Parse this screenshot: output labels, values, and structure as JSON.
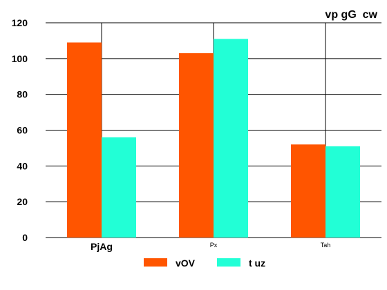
{
  "chart_data": {
    "type": "bar",
    "title": "vp gG  cw",
    "xlabel": "",
    "ylabel": "",
    "categories": [
      "PjAg",
      "Px",
      "Tah"
    ],
    "series": [
      {
        "name": "vOV",
        "values": [
          109,
          103,
          52
        ],
        "color": "#ff5500"
      },
      {
        "name": "t uz",
        "values": [
          56,
          111,
          51
        ],
        "color": "#22ffd6"
      }
    ],
    "ylim": [
      0,
      120
    ],
    "yticks": [
      0,
      20,
      40,
      60,
      80,
      100,
      120
    ],
    "grid": true,
    "legend": "bottom-center"
  }
}
